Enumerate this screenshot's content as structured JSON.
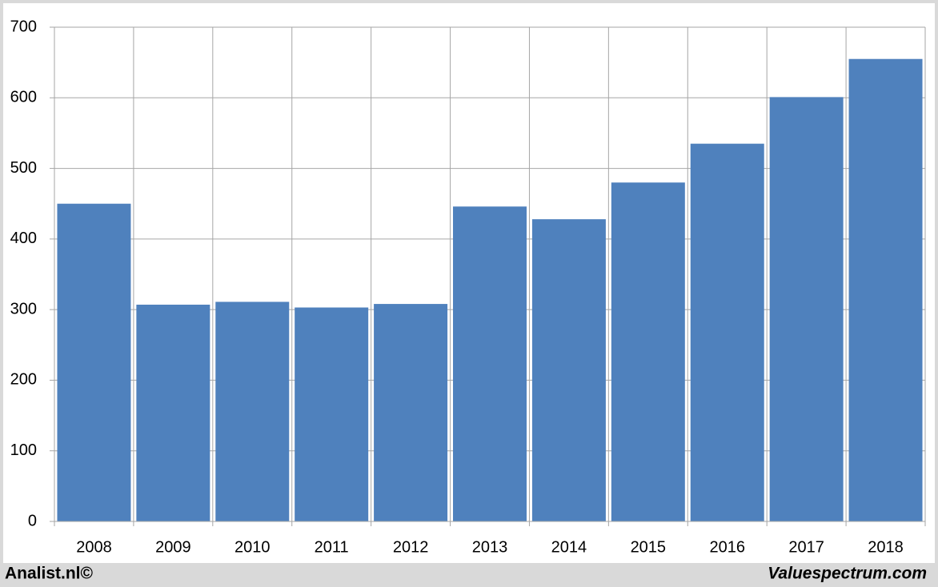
{
  "chart_data": {
    "type": "bar",
    "categories": [
      "2008",
      "2009",
      "2010",
      "2011",
      "2012",
      "2013",
      "2014",
      "2015",
      "2016",
      "2017",
      "2018"
    ],
    "values": [
      450,
      307,
      311,
      303,
      308,
      446,
      428,
      480,
      535,
      601,
      655
    ],
    "color": "#4f81bd",
    "ylim": [
      0,
      700
    ],
    "yticks": [
      0,
      100,
      200,
      300,
      400,
      500,
      600,
      700
    ],
    "grid": true
  },
  "footer": {
    "left": "Analist.nl©",
    "right": "Valuespectrum.com"
  }
}
